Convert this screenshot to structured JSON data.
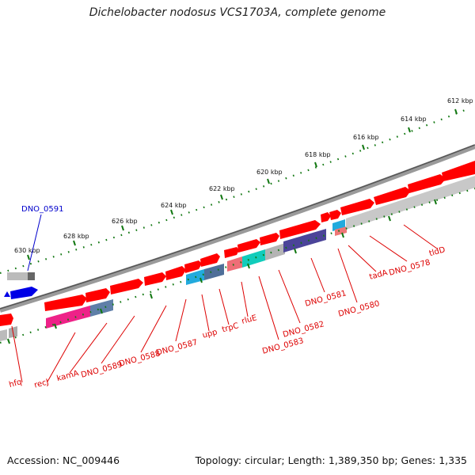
{
  "title": "Dichelobacter nodosus VCS1703A, complete genome",
  "accession": "Accession: NC_009446",
  "summary": "Topology: circular; Length: 1,389,350 bp; Genes: 1,335",
  "colors": {
    "forward": "#ff0000",
    "reverse": "#0000e6",
    "leader": "#dd0000",
    "upper_label": "#0000cc",
    "backbone": "#777777",
    "ruler": "#117711"
  },
  "ruler_labels": [
    "612 kbp",
    "614 kbp",
    "616 kbp",
    "618 kbp",
    "620 kbp",
    "622 kbp",
    "624 kbp",
    "626 kbp",
    "628 kbp",
    "630 kbp"
  ],
  "upper_gene_label": "DNO_0591",
  "lower_gene_labels": [
    "hfq",
    "recJ",
    "kamA",
    "DNO_0589",
    "DNO_0588",
    "DNO_0587",
    "upp",
    "trpC",
    "rluE",
    "DNO_0583",
    "DNO_0582",
    "DNO_0581",
    "DNO_0580",
    "tadA",
    "DNO_0578",
    "tldD"
  ]
}
